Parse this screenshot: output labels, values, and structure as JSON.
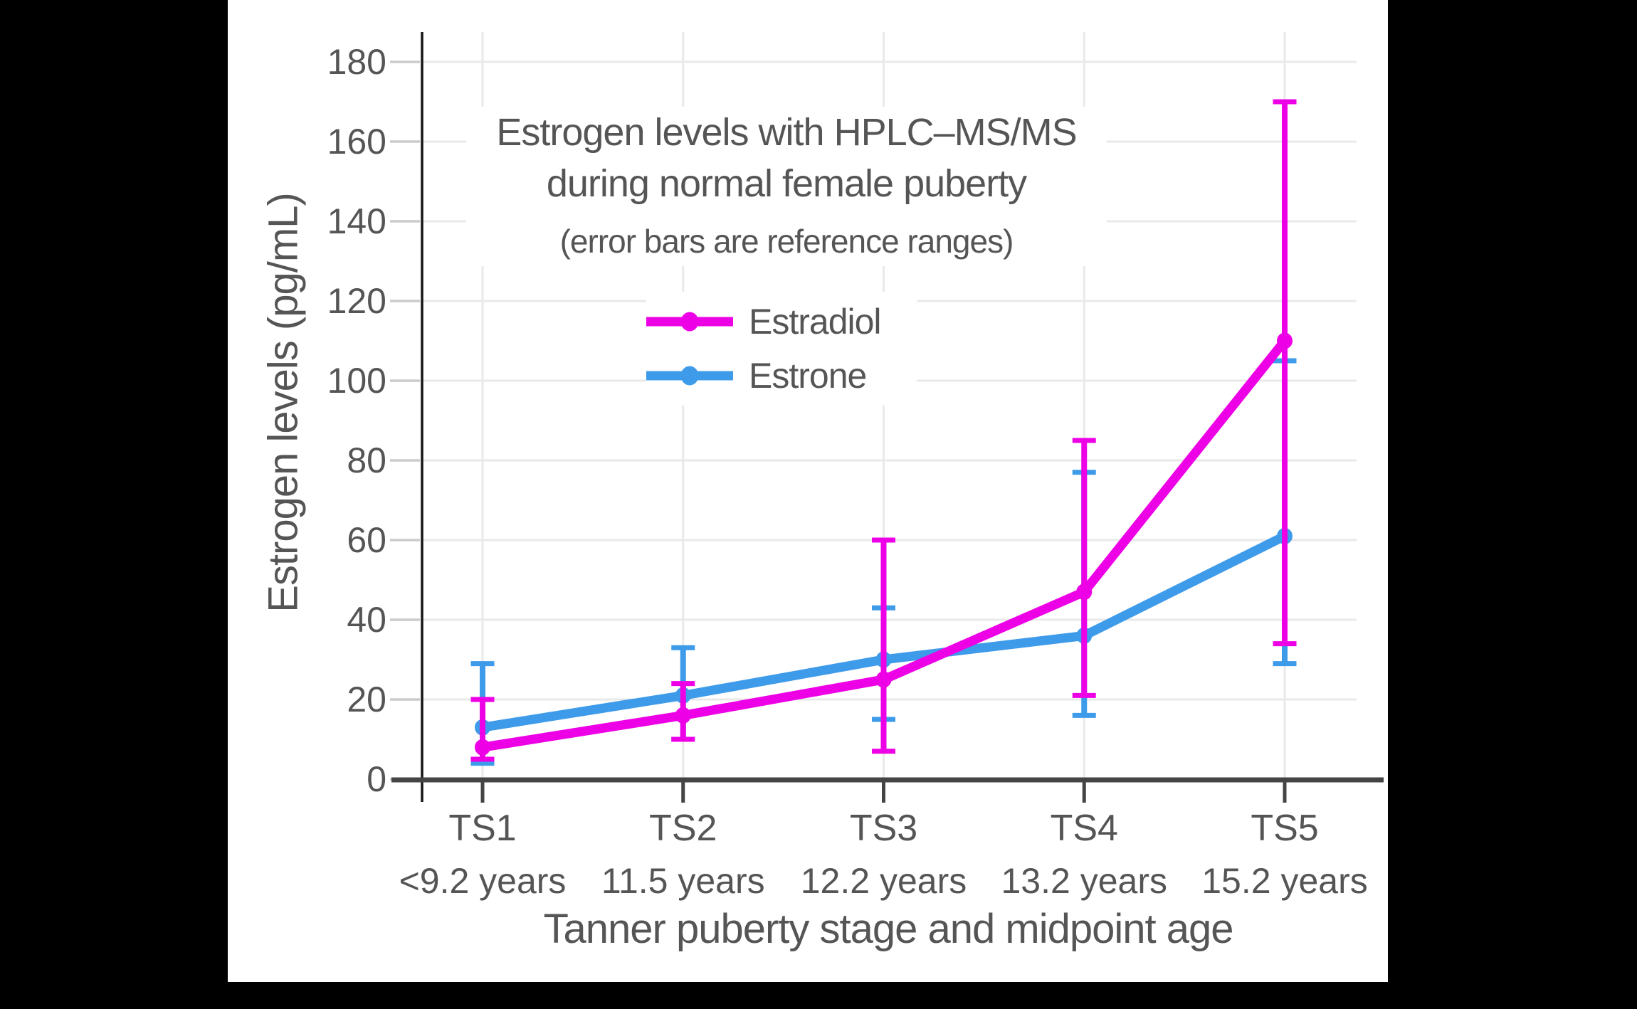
{
  "title": {
    "line1": "Estrogen levels with HPLC–MS/MS",
    "line2": "during normal female puberty",
    "subtitle": "(error bars are reference ranges)"
  },
  "axes": {
    "y_title": "Estrogen levels (pg/mL)",
    "x_title": "Tanner puberty stage and midpoint age"
  },
  "colors": {
    "background": "#000000",
    "panel": "#ffffff",
    "text": "#555555",
    "axis_line": "#444444",
    "y_axis_line": "#151515",
    "gridline": "#e9e9e9",
    "tick": "#cbcbcb",
    "estradiol": "#EE00E7",
    "estrone": "#3E9BEA"
  },
  "chart_data": {
    "type": "line",
    "title": "Estrogen levels with HPLC–MS/MS during normal female puberty",
    "subtitle": "(error bars are reference ranges)",
    "xlabel": "Tanner puberty stage and midpoint age",
    "ylabel": "Estrogen levels (pg/mL)",
    "categories": [
      "TS1",
      "TS2",
      "TS3",
      "TS4",
      "TS5"
    ],
    "category_sublabels": [
      "<9.2 years",
      "11.5 years",
      "12.2 years",
      "13.2 years",
      "15.2 years"
    ],
    "y_ticks": [
      0,
      20,
      40,
      60,
      80,
      100,
      120,
      140,
      160,
      180
    ],
    "ylim": [
      0,
      187.5
    ],
    "grid": true,
    "legend_position": "inside top-center",
    "error_bars": "reference ranges",
    "series": [
      {
        "name": "Estradiol",
        "color": "#EE00E7",
        "values": [
          8,
          16,
          25,
          47,
          110
        ],
        "error_low": [
          5,
          10,
          7,
          21,
          34
        ],
        "error_high": [
          20,
          24,
          60,
          85,
          170
        ]
      },
      {
        "name": "Estrone",
        "color": "#3E9BEA",
        "values": [
          13,
          21,
          30,
          36,
          61
        ],
        "error_low": [
          4,
          10,
          15,
          16,
          29
        ],
        "error_high": [
          29,
          33,
          43,
          77,
          105
        ]
      }
    ]
  }
}
